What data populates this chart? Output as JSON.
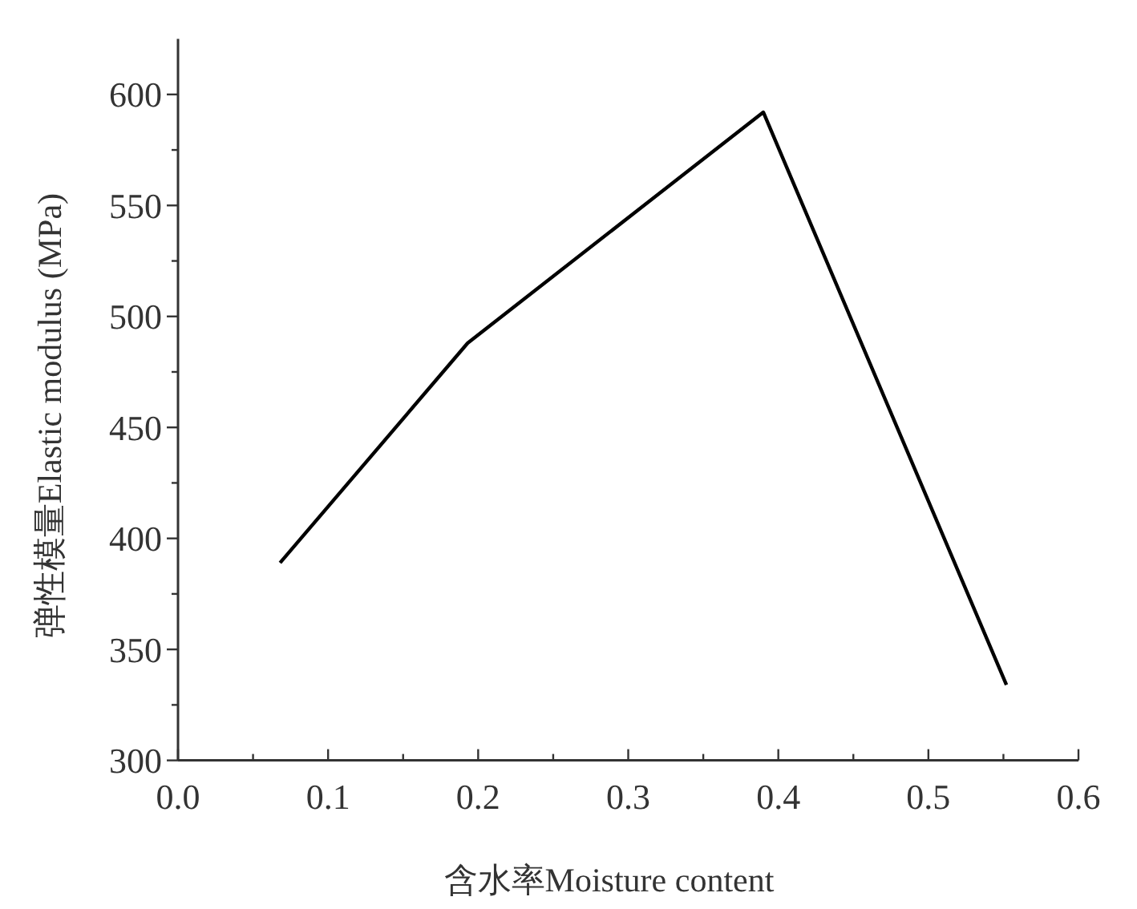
{
  "chart_data": {
    "type": "line",
    "xlabel": "含水率Moisture content",
    "ylabel": "弹性模量Elastic modulus (MPa)",
    "x": [
      0.068,
      0.193,
      0.39,
      0.552
    ],
    "series": [
      {
        "color": "#000000",
        "values": [
          389,
          488,
          592,
          334
        ]
      }
    ],
    "xlim": [
      0,
      0.6
    ],
    "ylim": [
      300,
      625
    ],
    "xticks": [
      {
        "value": 0,
        "label": "0.0"
      },
      {
        "value": 0.05,
        "label": null
      },
      {
        "value": 0.1,
        "label": "0.1"
      },
      {
        "value": 0.15,
        "label": null
      },
      {
        "value": 0.2,
        "label": "0.2"
      },
      {
        "value": 0.25,
        "label": null
      },
      {
        "value": 0.3,
        "label": "0.3"
      },
      {
        "value": 0.35,
        "label": null
      },
      {
        "value": 0.4,
        "label": "0.4"
      },
      {
        "value": 0.45,
        "label": null
      },
      {
        "value": 0.5,
        "label": "0.5"
      },
      {
        "value": 0.55,
        "label": null
      },
      {
        "value": 0.6,
        "label": "0.6"
      }
    ],
    "yticks": [
      300,
      {
        "value": 325,
        "label": null
      },
      350,
      {
        "value": 375,
        "label": null
      },
      400,
      {
        "value": 425,
        "label": null
      },
      450,
      {
        "value": 475,
        "label": null
      },
      500,
      {
        "value": 525,
        "label": null
      },
      550,
      {
        "value": 575,
        "label": null
      },
      600
    ],
    "grid": false,
    "marker": "none",
    "line_style": "solid"
  }
}
